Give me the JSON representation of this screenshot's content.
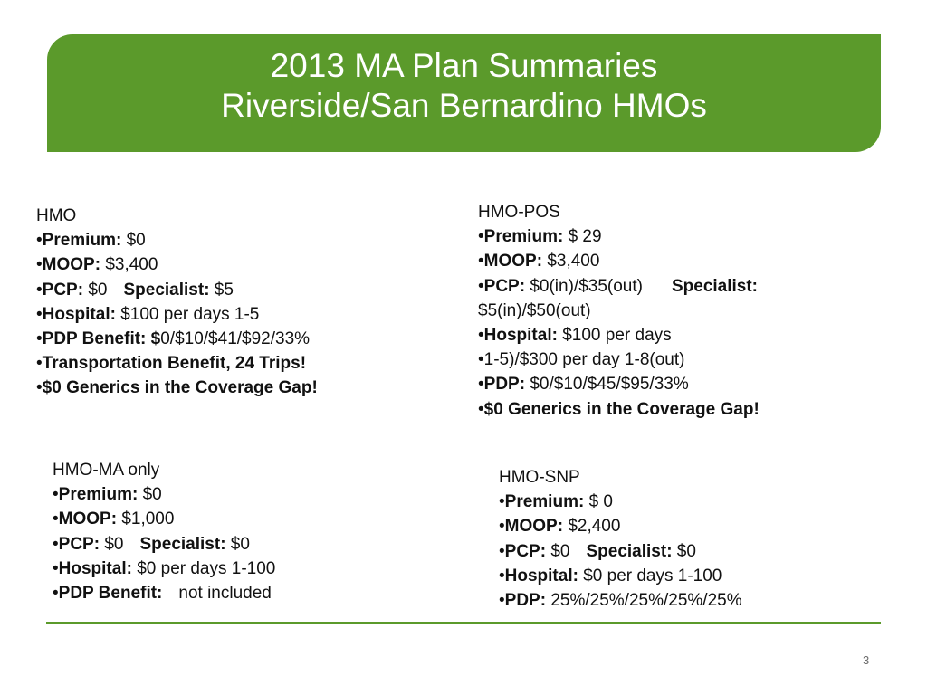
{
  "title": {
    "line1": "2013 MA Plan Summaries",
    "line2": "Riverside/San Bernardino HMOs"
  },
  "colors": {
    "accent_green": "#5b9a2b"
  },
  "bullet": "•",
  "hmo": {
    "heading": "HMO",
    "premium_label": "Premium:",
    "premium_value": " $0",
    "moop_label": "MOOP:",
    "moop_value": " $3,400",
    "pcp_label": "PCP:",
    "pcp_value": " $0",
    "specialist_label": "Specialist:",
    "specialist_value": " $5",
    "hospital_label": "Hospital:",
    "hospital_value": " $100 per days 1-5",
    "pdp_label": "PDP Benefit: $",
    "pdp_value": "0/$10/$41/$92/33%",
    "transport": "Transportation Benefit, 24 Trips!",
    "generics": "$0 Generics in the Coverage Gap!"
  },
  "hmo_pos": {
    "heading": "HMO-POS",
    "premium_label": "Premium:",
    "premium_value": " $ 29",
    "moop_label": "MOOP:",
    "moop_value": " $3,400",
    "pcp_label": "PCP:",
    "pcp_value": " $0(in)/$35(out)",
    "specialist_label": "Specialist:",
    "specialist_value": "$5(in)/$50(out)",
    "hospital_label": "Hospital:",
    "hospital_value": " $100 per days",
    "hospital_cont": "1-5)/$300 per day 1-8(out)",
    "pdp_label": "PDP:",
    "pdp_value": " $0/$10/$45/$95/33%",
    "generics": "$0 Generics in the Coverage Gap!"
  },
  "hmo_ma": {
    "heading": "HMO-MA only",
    "premium_label": "Premium:",
    "premium_value": " $0",
    "moop_label": "MOOP:",
    "moop_value": " $1,000",
    "pcp_label": "PCP:",
    "pcp_value": " $0",
    "specialist_label": "Specialist:",
    "specialist_value": " $0",
    "hospital_label": "Hospital:",
    "hospital_value": " $0 per days 1-100",
    "pdp_label": "PDP Benefit:",
    "pdp_value": "not included"
  },
  "hmo_snp": {
    "heading": "HMO-SNP",
    "premium_label": "Premium:",
    "premium_value": " $ 0",
    "moop_label": "MOOP:",
    "moop_value": " $2,400",
    "pcp_label": "PCP:",
    "pcp_value": " $0",
    "specialist_label": "Specialist:",
    "specialist_value": " $0",
    "hospital_label": "Hospital:",
    "hospital_value": " $0 per days 1-100",
    "pdp_label": "PDP:",
    "pdp_value": " 25%/25%/25%/25%/25%"
  },
  "page_number": "3"
}
